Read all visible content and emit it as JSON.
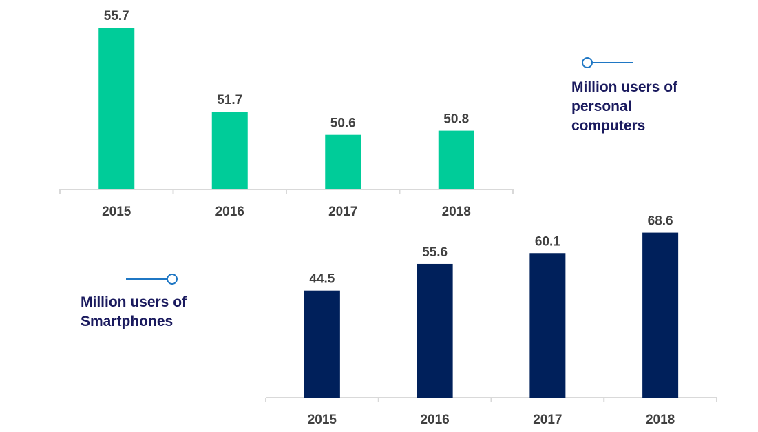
{
  "colors": {
    "pc_bar": "#00cc99",
    "smartphone_bar": "#00205b",
    "axis": "#d9d9d9",
    "label": "#404040",
    "legend_text": "#1a1a5e",
    "legend_marker": "#1f77c4"
  },
  "chart_data": [
    {
      "type": "bar",
      "title": "",
      "series_name": "Million users of personal computers",
      "legend_lines": [
        "Million users of",
        "personal",
        "computers"
      ],
      "legend_placement": "right",
      "categories": [
        "2015",
        "2016",
        "2017",
        "2018"
      ],
      "values": [
        55.7,
        51.7,
        50.6,
        50.8
      ],
      "value_labels": [
        "55.7",
        "51.7",
        "50.6",
        "50.8"
      ],
      "xlabel": "",
      "ylabel": "",
      "ylim": [
        48,
        56
      ],
      "grid": false
    },
    {
      "type": "bar",
      "title": "",
      "series_name": "Million users of Smartphones",
      "legend_lines": [
        "Million users of",
        "Smartphones"
      ],
      "legend_placement": "left",
      "categories": [
        "2015",
        "2016",
        "2017",
        "2018"
      ],
      "values": [
        44.5,
        55.6,
        60.1,
        68.6
      ],
      "value_labels": [
        "44.5",
        "55.6",
        "60.1",
        "68.6"
      ],
      "xlabel": "",
      "ylabel": "",
      "ylim": [
        0,
        70
      ],
      "grid": false
    }
  ]
}
